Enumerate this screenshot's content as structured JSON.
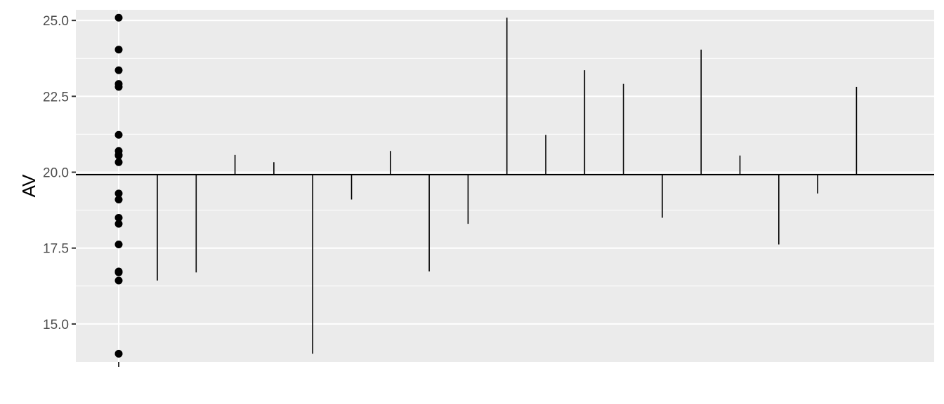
{
  "chart_data": {
    "type": "scatter",
    "title": "",
    "xlabel": "",
    "ylabel": "AV",
    "ylim": [
      13.75,
      25.35
    ],
    "grid": true,
    "y_ticks": [
      {
        "value": 15.0,
        "label": "15.0"
      },
      {
        "value": 17.5,
        "label": "17.5"
      },
      {
        "value": 20.0,
        "label": "20.0"
      },
      {
        "value": 22.5,
        "label": "22.5"
      },
      {
        "value": 25.0,
        "label": "25.0"
      }
    ],
    "x_tick_label": "",
    "reference_line": 19.92,
    "values": [
      16.43,
      16.7,
      20.57,
      20.33,
      14.02,
      19.1,
      20.7,
      16.73,
      18.3,
      25.09,
      21.23,
      23.36,
      22.91,
      18.5,
      24.04,
      20.55,
      17.62,
      19.3,
      22.81
    ],
    "colors": {
      "panel": "#ebebeb",
      "grid_major": "#ffffff",
      "marks": "#000000",
      "tick_text": "#4d4d4d",
      "tick_mark": "#333333"
    }
  }
}
